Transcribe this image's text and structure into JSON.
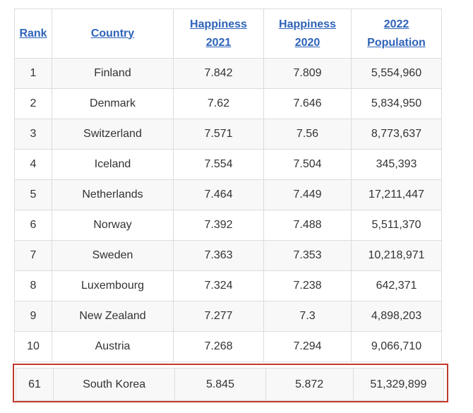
{
  "table": {
    "headers": [
      {
        "line1": "Rank",
        "line2": ""
      },
      {
        "line1": "Country",
        "line2": ""
      },
      {
        "line1": "Happiness",
        "line2": "2021"
      },
      {
        "line1": "Happiness",
        "line2": "2020"
      },
      {
        "line1": "2022",
        "line2": "Population"
      }
    ],
    "rows": [
      [
        "1",
        "Finland",
        "7.842",
        "7.809",
        "5,554,960"
      ],
      [
        "2",
        "Denmark",
        "7.62",
        "7.646",
        "5,834,950"
      ],
      [
        "3",
        "Switzerland",
        "7.571",
        "7.56",
        "8,773,637"
      ],
      [
        "4",
        "Iceland",
        "7.554",
        "7.504",
        "345,393"
      ],
      [
        "5",
        "Netherlands",
        "7.464",
        "7.449",
        "17,211,447"
      ],
      [
        "6",
        "Norway",
        "7.392",
        "7.488",
        "5,511,370"
      ],
      [
        "7",
        "Sweden",
        "7.363",
        "7.353",
        "10,218,971"
      ],
      [
        "8",
        "Luxembourg",
        "7.324",
        "7.238",
        "642,371"
      ],
      [
        "9",
        "New Zealand",
        "7.277",
        "7.3",
        "4,898,203"
      ],
      [
        "10",
        "Austria",
        "7.268",
        "7.294",
        "9,066,710"
      ]
    ],
    "highlighted_row": [
      "61",
      "South Korea",
      "5.845",
      "5.872",
      "51,329,899"
    ]
  },
  "colors": {
    "header_link": "#2e63b8",
    "highlight_border": "#c0392b",
    "row_stripe": "#f8f8f8",
    "grid_line": "#dcdcdc"
  }
}
